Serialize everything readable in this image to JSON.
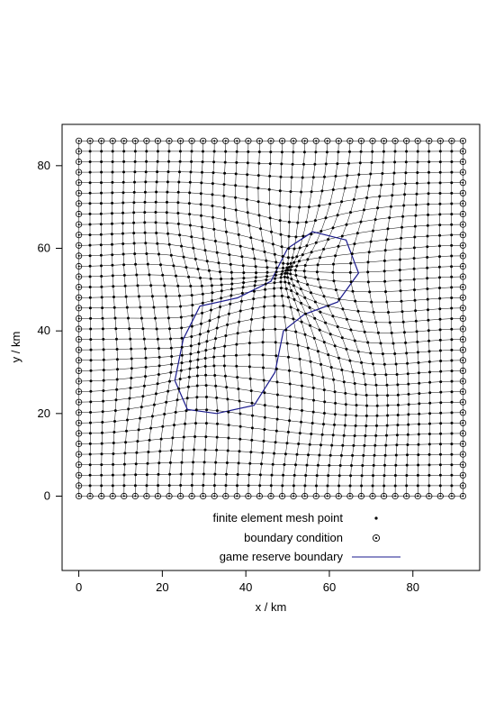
{
  "chart_data": {
    "type": "scatter",
    "title": "",
    "xlabel": "x / km",
    "ylabel": "y / km",
    "xlim": [
      -4,
      96
    ],
    "ylim": [
      -18,
      90
    ],
    "x_ticks": [
      0,
      20,
      40,
      60,
      80
    ],
    "y_ticks": [
      0,
      20,
      40,
      60,
      80
    ],
    "x_tick_labels": [
      "0",
      "20",
      "40",
      "60",
      "80"
    ],
    "y_tick_labels": [
      "0",
      "20",
      "40",
      "60",
      "80"
    ],
    "domain": {
      "x": [
        0,
        92
      ],
      "y": [
        0,
        86
      ]
    },
    "grid": false,
    "legend_position": "bottom-center",
    "series": [
      {
        "name": "finite element mesh point",
        "marker": "dot",
        "color": "#000000"
      },
      {
        "name": "boundary condition",
        "marker": "circled-dot",
        "color": "#000000"
      },
      {
        "name": "game reserve boundary",
        "marker": "line",
        "color": "#1a1a8c"
      }
    ],
    "game_reserve_boundary": [
      [
        23,
        28
      ],
      [
        25,
        38
      ],
      [
        29,
        46
      ],
      [
        38,
        48
      ],
      [
        46,
        52
      ],
      [
        50,
        60
      ],
      [
        56,
        64
      ],
      [
        64,
        62
      ],
      [
        67,
        54
      ],
      [
        62,
        47
      ],
      [
        54,
        44
      ],
      [
        49,
        40
      ],
      [
        47,
        30
      ],
      [
        42,
        22
      ],
      [
        33,
        20
      ],
      [
        26,
        21
      ],
      [
        23,
        28
      ]
    ]
  }
}
